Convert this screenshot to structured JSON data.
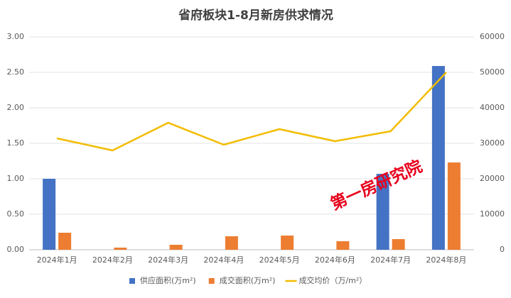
{
  "chart_data": {
    "type": "bar_line",
    "title": "省府板块1-8月新房供求情况",
    "categories": [
      "2024年1月",
      "2024年2月",
      "2024年3月",
      "2024年4月",
      "2024年5月",
      "2024年6月",
      "2024年7月",
      "2024年8月"
    ],
    "series": [
      {
        "name": "供应面积(万m²)",
        "color": "#4472c4",
        "type": "bar",
        "values": [
          1.0,
          null,
          null,
          null,
          null,
          null,
          1.07,
          2.59
        ]
      },
      {
        "name": "成交面积(万m²)",
        "color": "#ed7d31",
        "type": "bar",
        "values": [
          0.24,
          0.03,
          0.07,
          0.19,
          0.2,
          0.12,
          0.15,
          1.23
        ]
      },
      {
        "name": "成交均价（万/m²）",
        "color": "#f2bc00",
        "type": "line",
        "axis": "y2",
        "values": [
          31400,
          28000,
          35800,
          29600,
          34000,
          30600,
          33400,
          50000
        ]
      }
    ],
    "ylim": [
      0,
      3
    ],
    "yticks": [
      {
        "value": 0,
        "label": "0.00"
      },
      {
        "value": 0.5,
        "label": "0.50"
      },
      {
        "value": 1,
        "label": "1.00"
      },
      {
        "value": 1.5,
        "label": "1.50"
      },
      {
        "value": 2,
        "label": "2.00"
      },
      {
        "value": 2.5,
        "label": "2.50"
      },
      {
        "value": 3,
        "label": "3.00"
      }
    ],
    "y2lim": [
      0,
      60000
    ],
    "y2ticks": [
      0,
      10000,
      20000,
      30000,
      40000,
      50000,
      60000
    ],
    "grid": true,
    "legend": "bottom",
    "annotation": "第一房研究院"
  }
}
